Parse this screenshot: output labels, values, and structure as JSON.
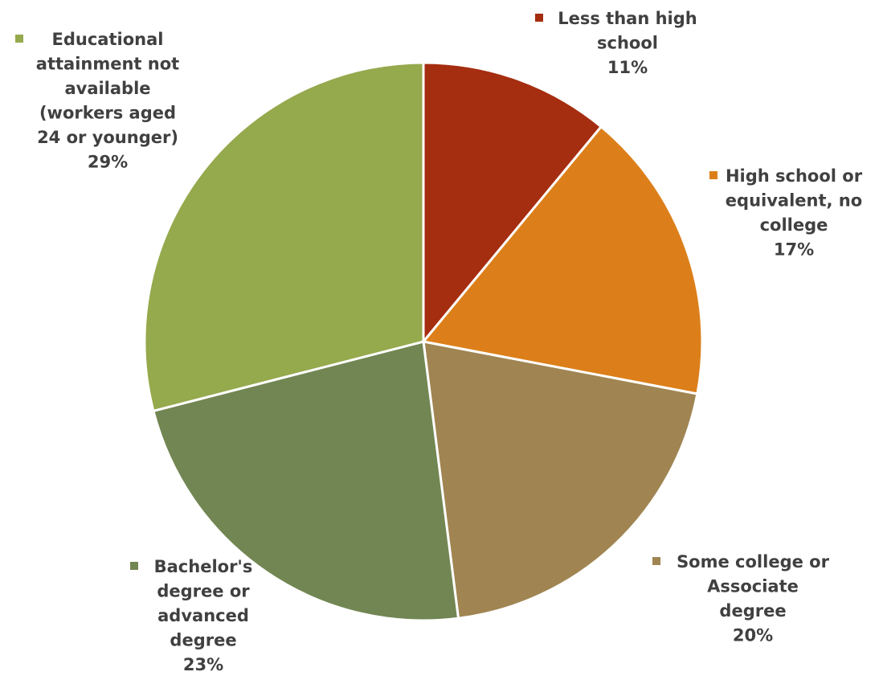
{
  "chart_data": {
    "type": "pie",
    "title": "",
    "start_angle": "12 o'clock, clockwise",
    "slices": [
      {
        "label": "Less than high school",
        "label_lines": [
          "Less than high",
          "school"
        ],
        "value": 11,
        "display": "11%",
        "color": "#A52D10"
      },
      {
        "label": "High school or equivalent, no college",
        "label_lines": [
          "High school or",
          "equivalent, no",
          "college"
        ],
        "value": 17,
        "display": "17%",
        "color": "#DC7F1A"
      },
      {
        "label": "Some college or Associate degree",
        "label_lines": [
          "Some college or",
          "Associate",
          "degree"
        ],
        "value": 20,
        "display": "20%",
        "color": "#A08552"
      },
      {
        "label": "Bachelor's degree or advanced degree",
        "label_lines": [
          "Bachelor's",
          "degree or",
          "advanced",
          "degree"
        ],
        "value": 23,
        "display": "23%",
        "color": "#728653"
      },
      {
        "label": "Educational attainment not available (workers aged 24 or younger)",
        "label_lines": [
          "Educational",
          "attainment not",
          "available",
          "(workers aged",
          "24 or younger)"
        ],
        "value": 29,
        "display": "29%",
        "color": "#95A94D"
      }
    ]
  }
}
